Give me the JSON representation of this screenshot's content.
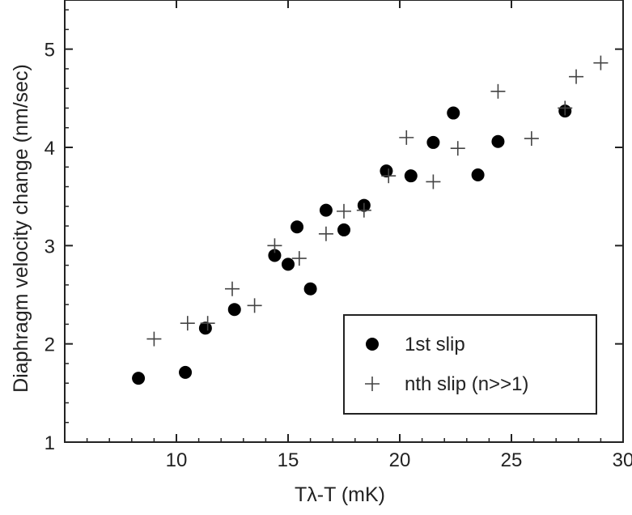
{
  "chart_data": {
    "type": "scatter",
    "xlabel": "Tλ-T (mK)",
    "ylabel": "Diaphragm velocity change (nm/sec)",
    "xlim": [
      5,
      30
    ],
    "ylim": [
      1,
      5.5
    ],
    "x_ticks": [
      10,
      15,
      20,
      25,
      30
    ],
    "y_ticks": [
      1,
      2,
      3,
      4,
      5
    ],
    "grid": false,
    "legend_position": "bottom-right",
    "series": [
      {
        "name": "1st slip",
        "marker": "filled-circle",
        "color": "#000000",
        "points": [
          [
            8.3,
            1.65
          ],
          [
            10.4,
            1.71
          ],
          [
            11.3,
            2.16
          ],
          [
            12.6,
            2.35
          ],
          [
            14.4,
            2.9
          ],
          [
            15.0,
            2.81
          ],
          [
            15.4,
            3.19
          ],
          [
            16.0,
            2.56
          ],
          [
            16.7,
            3.36
          ],
          [
            17.5,
            3.16
          ],
          [
            18.4,
            3.41
          ],
          [
            19.4,
            3.76
          ],
          [
            20.5,
            3.71
          ],
          [
            21.5,
            4.05
          ],
          [
            22.4,
            4.35
          ],
          [
            23.5,
            3.72
          ],
          [
            24.4,
            4.06
          ],
          [
            27.4,
            4.37
          ]
        ]
      },
      {
        "name": "nth slip (n>>1)",
        "marker": "plus",
        "color": "#444444",
        "points": [
          [
            9.0,
            2.05
          ],
          [
            10.5,
            2.21
          ],
          [
            11.4,
            2.21
          ],
          [
            12.5,
            2.56
          ],
          [
            13.5,
            2.39
          ],
          [
            14.4,
            3.0
          ],
          [
            15.5,
            2.87
          ],
          [
            16.7,
            3.12
          ],
          [
            17.5,
            3.35
          ],
          [
            18.4,
            3.36
          ],
          [
            19.5,
            3.71
          ],
          [
            20.3,
            4.1
          ],
          [
            21.5,
            3.65
          ],
          [
            22.6,
            3.99
          ],
          [
            24.4,
            4.57
          ],
          [
            25.9,
            4.09
          ],
          [
            27.4,
            4.4
          ],
          [
            27.9,
            4.72
          ],
          [
            29.0,
            4.86
          ]
        ]
      }
    ]
  }
}
